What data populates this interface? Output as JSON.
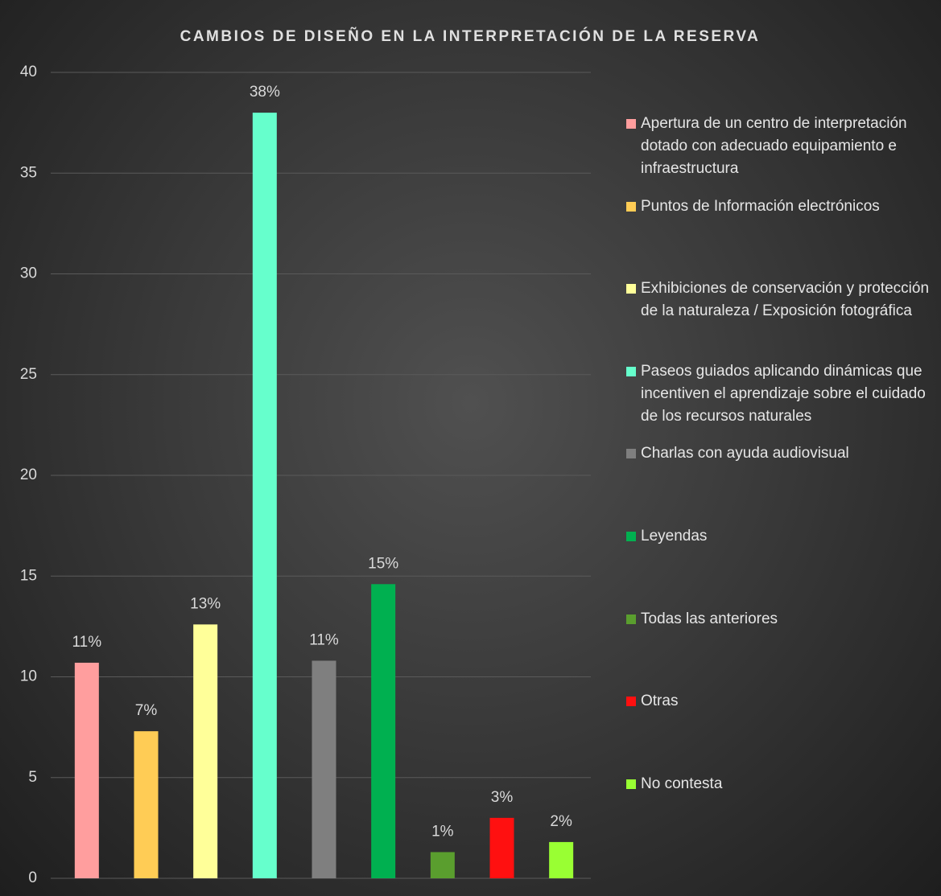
{
  "chart_data": {
    "type": "bar",
    "title": "CAMBIOS DE DISEÑO EN LA INTERPRETACIÓN DE LA RESERVA",
    "categories": [
      "Apertura de un centro de interpretación dotado con adecuado equipamiento e infraestructura",
      "Puntos de Información electrónicos",
      "Exhibiciones de conservación y protección de la naturaleza / Exposición fotográfica",
      "Paseos guiados aplicando dinámicas que incentiven el aprendizaje sobre el cuidado de los recursos naturales",
      "Charlas con ayuda audiovisual",
      "Leyendas",
      "Todas las anteriores",
      "Otras",
      "No contesta"
    ],
    "values": [
      10.7,
      7.3,
      12.6,
      38,
      10.8,
      14.6,
      1.3,
      3,
      1.8
    ],
    "value_labels": [
      "11%",
      "7%",
      "13%",
      "38%",
      "11%",
      "15%",
      "1%",
      "3%",
      "2%"
    ],
    "colors": [
      "#ff9e9e",
      "#ffcc55",
      "#ffff99",
      "#66ffcc",
      "#7f7f7f",
      "#00b050",
      "#5a9e2e",
      "#ff1010",
      "#99ff33"
    ],
    "ylim": [
      0,
      40
    ],
    "yticks": [
      0,
      5,
      10,
      15,
      20,
      25,
      30,
      35,
      40
    ],
    "grid": true,
    "legend": "right"
  }
}
